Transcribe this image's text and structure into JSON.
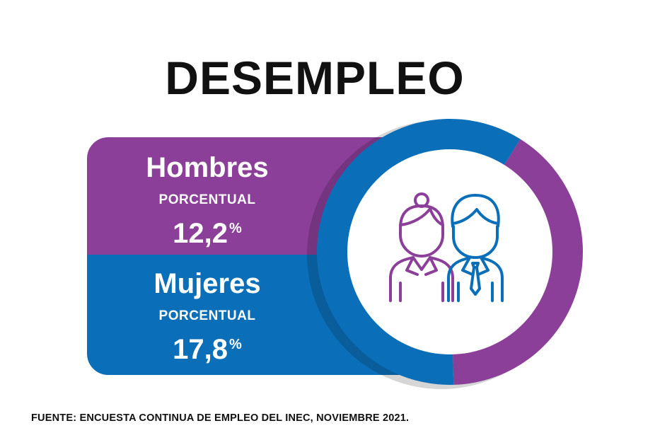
{
  "title": "DESEMPLEO",
  "colors": {
    "hombres": "#8b3f98",
    "mujeres": "#0a6fb8",
    "text": "#111111"
  },
  "icon": "man-and-woman-people-icon",
  "source": "FUENTE:  ENCUESTA CONTINUA DE EMPLEO DEL INEC, NOVIEMBRE 2021.",
  "chart_data": {
    "type": "pie",
    "title": "DESEMPLEO",
    "series": [
      {
        "name": "Hombres",
        "label": "PORCENTUAL",
        "value": 12.2,
        "value_text": "12,2",
        "unit": "%"
      },
      {
        "name": "Mujeres",
        "label": "PORCENTUAL",
        "value": 17.8,
        "value_text": "17,8",
        "unit": "%"
      }
    ]
  }
}
